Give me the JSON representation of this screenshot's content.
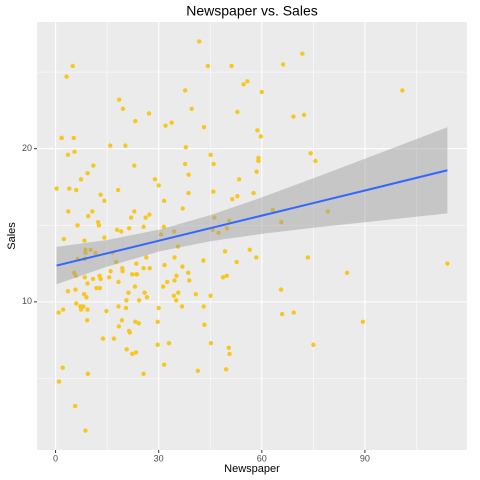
{
  "chart_data": {
    "type": "scatter",
    "title": "Newspaper vs. Sales",
    "x_label": "Newspaper",
    "y_label": "Sales",
    "color": "#F7C71E",
    "xlim": [
      -5.4,
      119.7
    ],
    "ylim": [
      0.33,
      28.27
    ],
    "xticks": [
      0,
      30,
      60,
      90
    ],
    "yticks": [
      10,
      20
    ],
    "xminor": [
      15,
      45,
      75,
      105
    ],
    "yminor": [
      5,
      15,
      25
    ],
    "grid": true,
    "x": [
      69.2,
      45.1,
      69.3,
      58.5,
      58.4,
      75,
      23.5,
      11.6,
      1,
      21.2,
      24.2,
      4,
      65.9,
      7.2,
      46,
      52.9,
      114,
      55.8,
      18.3,
      19.1,
      53.4,
      23.5,
      49.6,
      26.2,
      18.3,
      19.5,
      12.6,
      22.9,
      22.9,
      40.8,
      43.2,
      38.6,
      30,
      0.3,
      7.4,
      8.5,
      5,
      45.7,
      35.1,
      32,
      31.6,
      38.7,
      1.8,
      26.4,
      43.3,
      31.5,
      35.7,
      18.5,
      49.9,
      36.8,
      34.6,
      3.6,
      39.6,
      58.7,
      15.9,
      60,
      41.4,
      16.6,
      37.7,
      9.3,
      21.4,
      54.7,
      27.3,
      8.4,
      28.9,
      0.9,
      2.2,
      10.2,
      11,
      27.2,
      38.7,
      31.7,
      19.3,
      31.3,
      13.1,
      89.4,
      20.7,
      14.2,
      9.4,
      23.1,
      22.3,
      36.9,
      32.5,
      35.6,
      33.8,
      65.7,
      16,
      63.2,
      73.4,
      51.4,
      9.3,
      33,
      59,
      72.3,
      10.9,
      52.9,
      5.9,
      22,
      51.2,
      45.9,
      49.8,
      100.9,
      21.4,
      17.9,
      5.3,
      59,
      29.7,
      23.2,
      25.6,
      5.5,
      56.5,
      23.2,
      2.4,
      10.7,
      34.5,
      52.7,
      25.6,
      14.8,
      79.2,
      22.3,
      46.2,
      50.4,
      15.6,
      12.4,
      74.2,
      25.9,
      50.6,
      9.2,
      3.2,
      43.1,
      8.7,
      43,
      2.1,
      45.1,
      65.6,
      8.5,
      9.3,
      59.7,
      20.5,
      1.7,
      12.9,
      75.6,
      37.9,
      34.4,
      38.9,
      9,
      8.7,
      44.3,
      11.9,
      20.6,
      37,
      48.7,
      14.2,
      37.7,
      9.5,
      5.7,
      50.5,
      24.3,
      45.2,
      34.6,
      30.7,
      49.3,
      25.6,
      7.4,
      5.4,
      84.8,
      21.6,
      19.4,
      57.6,
      6.4,
      18.4,
      47.4,
      17,
      12.8,
      13.1,
      41.8,
      20.3,
      35.2,
      23.7,
      17.6,
      8.3,
      27.4,
      29.7,
      71.8,
      30,
      19.6,
      26.6,
      18.2,
      3.7,
      23.4,
      5.8,
      6,
      31.6,
      3.6,
      6,
      13.8,
      8.1,
      6.4,
      66.2,
      8.7
    ],
    "values": [
      22.1,
      10.4,
      9.3,
      18.5,
      12.9,
      7.2,
      11.8,
      13.2,
      4.8,
      10.6,
      8.6,
      17.4,
      9.2,
      9.7,
      19,
      22.4,
      12.5,
      24.4,
      11.3,
      14.6,
      18,
      12.5,
      5.6,
      15.5,
      9.7,
      12,
      15,
      15.9,
      18.9,
      10.5,
      21.4,
      11.9,
      9.6,
      17.4,
      9.5,
      12.8,
      25.4,
      14.7,
      10.1,
      21.5,
      16.6,
      17.1,
      20.7,
      12.9,
      8.5,
      14.9,
      10.6,
      23.2,
      14.8,
      9.7,
      11.4,
      10.7,
      22.6,
      21.2,
      20.2,
      23.7,
      5.5,
      13.2,
      23.8,
      18.4,
      8.1,
      24.2,
      15.7,
      14,
      18,
      9.3,
      9.5,
      13.4,
      18.9,
      22.3,
      18.3,
      12.4,
      8.8,
      11,
      17,
      8.7,
      6.9,
      14.2,
      5.3,
      11,
      11.8,
      12.3,
      11.3,
      13.6,
      21.7,
      15.2,
      12,
      16,
      12.9,
      16.7,
      11.2,
      7.3,
      19.4,
      22.2,
      11.5,
      16.9,
      11.7,
      15.5,
      25.4,
      17.2,
      11.7,
      23.8,
      14.8,
      14.7,
      20.7,
      19.2,
      7.2,
      8.7,
      5.3,
      19.8,
      13.4,
      21.8,
      14.1,
      15.9,
      14.6,
      12.6,
      12.2,
      9.4,
      15.9,
      6.6,
      15.5,
      7,
      11.6,
      15.2,
      19.7,
      10.6,
      6.6,
      8.8,
      24.7,
      9.7,
      1.6,
      12.7,
      5.7,
      19.6,
      10.8,
      11.6,
      9.5,
      20.8,
      9.6,
      20.7,
      10.9,
      19.2,
      20.1,
      10.4,
      11.4,
      10.3,
      13.2,
      25.4,
      10.9,
      10.1,
      16.1,
      11.6,
      16.6,
      19,
      15.6,
      3.2,
      15.3,
      10.1,
      7.3,
      12.9,
      14.4,
      13.3,
      14.9,
      18,
      11.9,
      11.9,
      8,
      12.2,
      17.1,
      15,
      8.4,
      14.5,
      7.6,
      11.7,
      11.5,
      27,
      20.2,
      11.7,
      11.8,
      12.6,
      10.5,
      12.2,
      8.7,
      26.2,
      17.6,
      22.6,
      10.3,
      17.3,
      15.9,
      6.7,
      10.8,
      9.9,
      5.9,
      19.6,
      17.3,
      7.6,
      9.7,
      12.8,
      25.5,
      13.4
    ],
    "fit": {
      "color": "#3366FF",
      "x": [
        0.3,
        15,
        30.55,
        45,
        60,
        75,
        90,
        114
      ],
      "values": [
        12.37,
        13.17,
        14.02,
        14.81,
        15.63,
        16.45,
        17.27,
        18.59
      ]
    },
    "band": {
      "color": "#999999",
      "x": [
        0.3,
        15,
        30.55,
        45,
        60,
        75,
        90,
        114
      ],
      "lower": [
        11.15,
        12.3,
        13.31,
        13.96,
        14.44,
        14.84,
        15.2,
        15.78
      ],
      "upper": [
        13.59,
        14.04,
        14.73,
        15.66,
        16.82,
        18.07,
        19.34,
        21.4
      ]
    }
  }
}
